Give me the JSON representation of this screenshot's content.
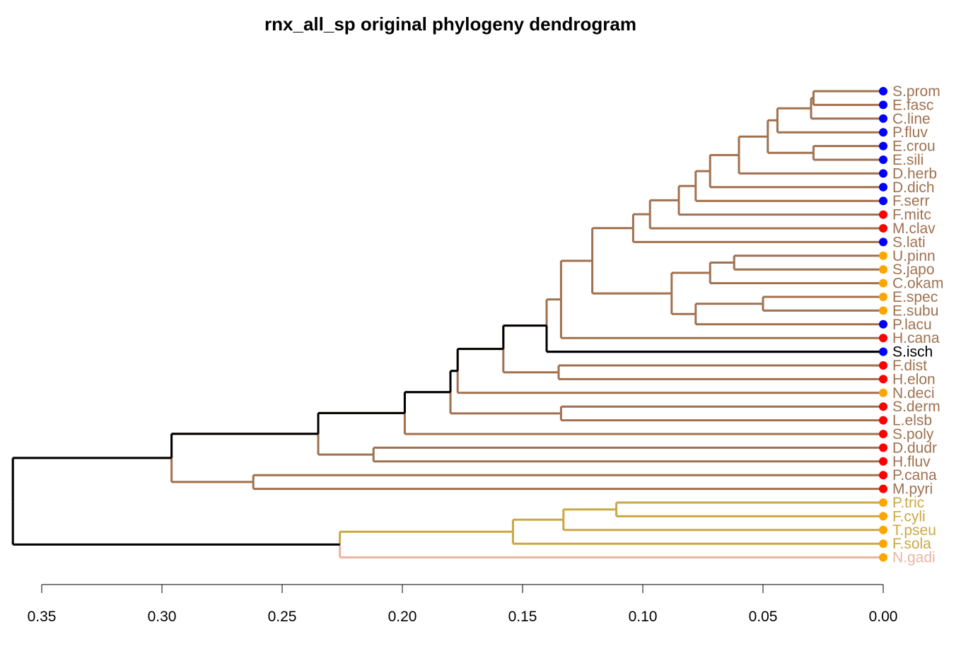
{
  "chart_data": {
    "type": "dendrogram",
    "title": "rnx_all_sp original phylogeny dendrogram",
    "xlabel": "",
    "ylabel": "",
    "x_axis": {
      "reversed": true,
      "range": [
        0.36,
        0.0
      ],
      "ticks": [
        0.35,
        0.3,
        0.25,
        0.2,
        0.15,
        0.1,
        0.05,
        0.0
      ],
      "tick_labels": [
        "0.35",
        "0.30",
        "0.25",
        "0.20",
        "0.15",
        "0.10",
        "0.05",
        "0.00"
      ]
    },
    "colors": {
      "brown": "#a0714f",
      "gold": "#c9a845",
      "pink": "#e8b4a4",
      "black": "#000000"
    },
    "leaves": [
      {
        "label": "S.prom",
        "point_color": "#0000ff"
      },
      {
        "label": "E.fasc",
        "point_color": "#0000ff"
      },
      {
        "label": "C.line",
        "point_color": "#0000ff"
      },
      {
        "label": "P.fluv",
        "point_color": "#0000ff"
      },
      {
        "label": "E.crou",
        "point_color": "#0000ff"
      },
      {
        "label": "E.sili",
        "point_color": "#0000ff"
      },
      {
        "label": "D.herb",
        "point_color": "#0000ff"
      },
      {
        "label": "D.dich",
        "point_color": "#0000ff"
      },
      {
        "label": "F.serr",
        "point_color": "#0000ff"
      },
      {
        "label": "F.mitc",
        "point_color": "#ff0000"
      },
      {
        "label": "M.clav",
        "point_color": "#ff0000"
      },
      {
        "label": "S.lati",
        "point_color": "#0000ff"
      },
      {
        "label": "U.pinn",
        "point_color": "#ffa500"
      },
      {
        "label": "S.japo",
        "point_color": "#ffa500"
      },
      {
        "label": "C.okam",
        "point_color": "#ffa500"
      },
      {
        "label": "E.spec",
        "point_color": "#ffa500"
      },
      {
        "label": "E.subu",
        "point_color": "#ffa500"
      },
      {
        "label": "P.lacu",
        "point_color": "#0000ff"
      },
      {
        "label": "H.cana",
        "point_color": "#ff0000"
      },
      {
        "label": "S.isch",
        "point_color": "#0000ff"
      },
      {
        "label": "F.dist",
        "point_color": "#ff0000"
      },
      {
        "label": "H.elon",
        "point_color": "#ff0000"
      },
      {
        "label": "N.deci",
        "point_color": "#ffa500"
      },
      {
        "label": "S.derm",
        "point_color": "#ff0000"
      },
      {
        "label": "L.elsb",
        "point_color": "#ff0000"
      },
      {
        "label": "S.poly",
        "point_color": "#ff0000"
      },
      {
        "label": "D.dudr",
        "point_color": "#ff0000"
      },
      {
        "label": "H.fluv",
        "point_color": "#ff0000"
      },
      {
        "label": "P.cana",
        "point_color": "#ff0000"
      },
      {
        "label": "M.pyri",
        "point_color": "#ff0000"
      },
      {
        "label": "P.tric",
        "point_color": "#ffa500"
      },
      {
        "label": "F.cyli",
        "point_color": "#ffa500"
      },
      {
        "label": "T.pseu",
        "point_color": "#ffa500"
      },
      {
        "label": "F.sola",
        "point_color": "#ffa500"
      },
      {
        "label": "N.gadi",
        "point_color": "#ffa500"
      }
    ],
    "tree": {
      "h": 0.362,
      "c": [
        {
          "h": 0.296,
          "c": [
            {
              "h": 0.235,
              "c": [
                {
                  "h": 0.199,
                  "c": [
                    {
                      "h": 0.18,
                      "c": [
                        {
                          "h": 0.177,
                          "c": [
                            {
                              "h": 0.158,
                              "c": [
                                {
                                  "h": 0.14,
                                  "c": [
                                    {
                                      "h": 0.134,
                                      "c": [
                                        {
                                          "h": 0.121,
                                          "c": [
                                            {
                                              "h": 0.104,
                                              "c": [
                                                {
                                                  "h": 0.097,
                                                  "c": [
                                                    {
                                                      "h": 0.085,
                                                      "c": [
                                                        {
                                                          "h": 0.078,
                                                          "c": [
                                                            {
                                                              "h": 0.072,
                                                              "c": [
                                                                {
                                                                  "h": 0.06,
                                                                  "c": [
                                                                    {
                                                                      "h": 0.048,
                                                                      "c": [
                                                                        {
                                                                          "h": 0.044,
                                                                          "c": [
                                                                            {
                                                                              "h": 0.03,
                                                                              "c": [
                                                                                {
                                                                                  "h": 0.029,
                                                                                  "c": [
                                                                                    {
                                                                                      "leaf": 0
                                                                                    },
                                                                                    {
                                                                                      "leaf": 1
                                                                                    }
                                                                                  ]
                                                                                },
                                                                                {
                                                                                  "leaf": 2
                                                                                }
                                                                              ]
                                                                            },
                                                                            {
                                                                              "leaf": 3
                                                                            }
                                                                          ]
                                                                        },
                                                                        {
                                                                          "h": 0.029,
                                                                          "c": [
                                                                            {
                                                                              "leaf": 4
                                                                            },
                                                                            {
                                                                              "leaf": 5
                                                                            }
                                                                          ]
                                                                        }
                                                                      ]
                                                                    },
                                                                    {
                                                                      "leaf": 6
                                                                    }
                                                                  ]
                                                                },
                                                                {
                                                                  "leaf": 7
                                                                }
                                                              ]
                                                            },
                                                            {
                                                              "leaf": 8
                                                            }
                                                          ]
                                                        },
                                                        {
                                                          "leaf": 9
                                                        }
                                                      ]
                                                    },
                                                    {
                                                      "leaf": 10
                                                    }
                                                  ]
                                                },
                                                {
                                                  "leaf": 11
                                                }
                                              ]
                                            },
                                            {
                                              "h": 0.088,
                                              "c": [
                                                {
                                                  "h": 0.072,
                                                  "c": [
                                                    {
                                                      "h": 0.062,
                                                      "c": [
                                                        {
                                                          "leaf": 12
                                                        },
                                                        {
                                                          "leaf": 13
                                                        }
                                                      ]
                                                    },
                                                    {
                                                      "leaf": 14
                                                    }
                                                  ]
                                                },
                                                {
                                                  "h": 0.078,
                                                  "c": [
                                                    {
                                                      "h": 0.05,
                                                      "c": [
                                                        {
                                                          "leaf": 15
                                                        },
                                                        {
                                                          "leaf": 16
                                                        }
                                                      ]
                                                    },
                                                    {
                                                      "leaf": 17
                                                    }
                                                  ]
                                                }
                                              ]
                                            }
                                          ]
                                        },
                                        {
                                          "leaf": 18
                                        }
                                      ]
                                    },
                                    {
                                      "leaf": 19,
                                      "color": "black"
                                    }
                                  ]
                                },
                                {
                                  "h": 0.135,
                                  "c": [
                                    {
                                      "leaf": 20
                                    },
                                    {
                                      "leaf": 21
                                    }
                                  ]
                                }
                              ]
                            },
                            {
                              "leaf": 22
                            }
                          ]
                        },
                        {
                          "h": 0.134,
                          "c": [
                            {
                              "leaf": 23
                            },
                            {
                              "leaf": 24
                            }
                          ]
                        }
                      ]
                    },
                    {
                      "leaf": 25
                    }
                  ]
                },
                {
                  "h": 0.212,
                  "c": [
                    {
                      "leaf": 26
                    },
                    {
                      "leaf": 27
                    }
                  ]
                }
              ]
            },
            {
              "h": 0.262,
              "c": [
                {
                  "leaf": 28
                },
                {
                  "leaf": 29
                }
              ]
            }
          ]
        },
        {
          "h": 0.226,
          "color": "pink",
          "c": [
            {
              "h": 0.154,
              "color": "gold",
              "c": [
                {
                  "h": 0.133,
                  "color": "gold",
                  "c": [
                    {
                      "h": 0.111,
                      "color": "gold",
                      "c": [
                        {
                          "leaf": 30,
                          "color": "gold"
                        },
                        {
                          "leaf": 31,
                          "color": "gold"
                        }
                      ]
                    },
                    {
                      "leaf": 32,
                      "color": "gold"
                    }
                  ]
                },
                {
                  "leaf": 33,
                  "color": "gold"
                }
              ]
            },
            {
              "leaf": 34,
              "color": "pink"
            }
          ]
        }
      ]
    }
  }
}
